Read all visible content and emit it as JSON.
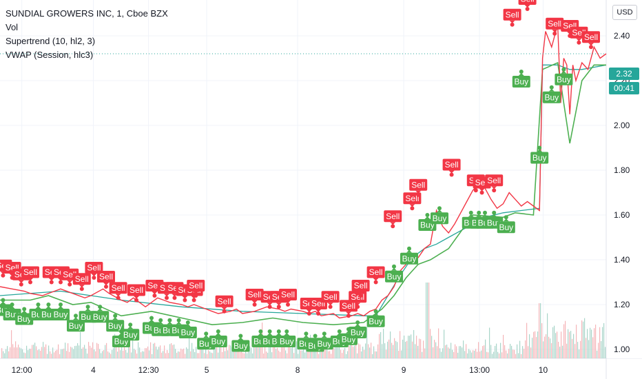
{
  "legend": {
    "title": "SUNDIAL GROWERS INC, 1, Cboe BZX",
    "line2": "Vol",
    "line3": "Supertrend (10, hl2, 3)",
    "line4": "VWAP (Session, hlc3)"
  },
  "currency_button": "USD",
  "price_tag": {
    "value": "2.32",
    "countdown": "00:41",
    "color": "#26a69a"
  },
  "colors": {
    "buy": "#4caf50",
    "sell": "#f23645",
    "price": "#26a69a",
    "vwap": "#26a69a",
    "vol_up": "#a8d5c9",
    "vol_down": "#f5b5b8",
    "grid": "#f0f3fa",
    "text": "#131722"
  },
  "chart_data": {
    "type": "line",
    "title": "SUNDIAL GROWERS INC, 1, Cboe BZX",
    "ylim": [
      0.96,
      2.56
    ],
    "yticks": [
      1.0,
      1.2,
      1.4,
      1.6,
      1.8,
      2.0,
      2.2,
      2.4
    ],
    "ytick_labels": [
      "1.00",
      "1.20",
      "1.40",
      "1.60",
      "1.80",
      "2.00",
      "2.20",
      "2.40"
    ],
    "xlim": [
      0,
      100
    ],
    "xticks": [
      {
        "x": 3.6,
        "label": "12:00"
      },
      {
        "x": 15.4,
        "label": "4"
      },
      {
        "x": 24.5,
        "label": "12:30"
      },
      {
        "x": 34.1,
        "label": "5"
      },
      {
        "x": 49.1,
        "label": "8"
      },
      {
        "x": 66.6,
        "label": "9"
      },
      {
        "x": 79.1,
        "label": "13:00"
      },
      {
        "x": 89.6,
        "label": "10"
      }
    ],
    "price": [
      [
        0,
        1.28
      ],
      [
        2,
        1.27
      ],
      [
        4,
        1.26
      ],
      [
        5,
        1.25
      ],
      [
        7,
        1.24
      ],
      [
        9,
        1.26
      ],
      [
        10,
        1.27
      ],
      [
        12,
        1.25
      ],
      [
        14,
        1.23
      ],
      [
        15,
        1.24
      ],
      [
        17,
        1.27
      ],
      [
        18,
        1.25
      ],
      [
        20,
        1.22
      ],
      [
        21,
        1.21
      ],
      [
        22,
        1.23
      ],
      [
        23,
        1.21
      ],
      [
        24,
        1.19
      ],
      [
        25,
        1.21
      ],
      [
        26,
        1.23
      ],
      [
        27,
        1.22
      ],
      [
        28,
        1.21
      ],
      [
        30,
        1.2
      ],
      [
        31,
        1.19
      ],
      [
        32,
        1.2
      ],
      [
        34,
        1.18
      ],
      [
        35,
        1.17
      ],
      [
        36,
        1.16
      ],
      [
        38,
        1.17
      ],
      [
        39,
        1.18
      ],
      [
        40,
        1.16
      ],
      [
        42,
        1.17
      ],
      [
        44,
        1.19
      ],
      [
        46,
        1.18
      ],
      [
        47,
        1.17
      ],
      [
        48,
        1.18
      ],
      [
        50,
        1.17
      ],
      [
        51,
        1.16
      ],
      [
        52,
        1.17
      ],
      [
        53,
        1.15
      ],
      [
        55,
        1.16
      ],
      [
        56,
        1.14
      ],
      [
        58,
        1.15
      ],
      [
        59,
        1.16
      ],
      [
        60,
        1.15
      ],
      [
        61,
        1.17
      ],
      [
        62,
        1.18
      ],
      [
        63,
        1.22
      ],
      [
        64,
        1.24
      ],
      [
        65,
        1.28
      ],
      [
        66,
        1.35
      ],
      [
        67,
        1.38
      ],
      [
        68,
        1.42
      ],
      [
        69,
        1.41
      ],
      [
        70,
        1.45
      ],
      [
        71,
        1.47
      ],
      [
        72,
        1.62
      ],
      [
        73,
        1.55
      ],
      [
        74,
        1.52
      ],
      [
        75,
        1.56
      ],
      [
        76,
        1.61
      ],
      [
        77,
        1.66
      ],
      [
        78,
        1.71
      ],
      [
        79,
        1.74
      ],
      [
        80,
        1.72
      ],
      [
        81,
        1.67
      ],
      [
        82,
        1.63
      ],
      [
        83,
        1.65
      ],
      [
        84,
        1.7
      ],
      [
        85,
        1.67
      ],
      [
        86,
        1.64
      ],
      [
        87,
        1.66
      ],
      [
        88,
        1.64
      ],
      [
        89,
        1.62
      ],
      [
        89.5,
        2.3
      ],
      [
        90,
        2.42
      ],
      [
        91,
        2.35
      ],
      [
        92,
        2.45
      ],
      [
        92.5,
        2.1
      ],
      [
        93,
        2.3
      ],
      [
        93.5,
        2.27
      ],
      [
        94,
        2.05
      ],
      [
        94.5,
        2.27
      ],
      [
        95,
        2.2
      ],
      [
        96,
        2.28
      ],
      [
        97,
        2.25
      ],
      [
        98,
        2.35
      ],
      [
        99,
        2.3
      ],
      [
        100,
        2.32
      ]
    ],
    "supertrend_up": [
      [
        0,
        1.22
      ],
      [
        5,
        1.22
      ],
      [
        8,
        1.24
      ],
      [
        12,
        1.2
      ],
      [
        15,
        1.21
      ],
      [
        20,
        1.15
      ],
      [
        25,
        1.17
      ],
      [
        30,
        1.14
      ],
      [
        35,
        1.11
      ],
      [
        40,
        1.12
      ],
      [
        45,
        1.14
      ],
      [
        50,
        1.12
      ],
      [
        55,
        1.11
      ],
      [
        60,
        1.12
      ],
      [
        63,
        1.18
      ],
      [
        65,
        1.24
      ],
      [
        67,
        1.32
      ],
      [
        69,
        1.38
      ],
      [
        71,
        1.4
      ],
      [
        74,
        1.45
      ],
      [
        78,
        1.6
      ],
      [
        83,
        1.59
      ],
      [
        85,
        1.61
      ],
      [
        88,
        1.6
      ],
      [
        89.5,
        2.25
      ],
      [
        92,
        2.28
      ],
      [
        94,
        1.92
      ],
      [
        96,
        2.2
      ],
      [
        98,
        2.27
      ],
      [
        100,
        2.27
      ]
    ],
    "vwap": [
      [
        0,
        1.24
      ],
      [
        10,
        1.26
      ],
      [
        20,
        1.22
      ],
      [
        30,
        1.19
      ],
      [
        40,
        1.17
      ],
      [
        50,
        1.16
      ],
      [
        60,
        1.15
      ],
      [
        62,
        1.15
      ],
      [
        64,
        1.24
      ],
      [
        66,
        1.33
      ],
      [
        68,
        1.41
      ],
      [
        70,
        1.45
      ],
      [
        72,
        1.47
      ],
      [
        74,
        1.5
      ],
      [
        76,
        1.53
      ],
      [
        78,
        1.56
      ],
      [
        80,
        1.59
      ],
      [
        83,
        1.61
      ],
      [
        86,
        1.62
      ],
      [
        89,
        1.63
      ],
      [
        89.5,
        2.27
      ],
      [
        92,
        2.27
      ],
      [
        94,
        2.25
      ],
      [
        96,
        2.25
      ],
      [
        100,
        2.27
      ]
    ],
    "buy_signals": [
      [
        0.5,
        1.22
      ],
      [
        2,
        1.2
      ],
      [
        4,
        1.18
      ],
      [
        6.3,
        1.2
      ],
      [
        8,
        1.2
      ],
      [
        10,
        1.2
      ],
      [
        12.5,
        1.15
      ],
      [
        14.5,
        1.19
      ],
      [
        16.5,
        1.19
      ],
      [
        19,
        1.15
      ],
      [
        20,
        1.08
      ],
      [
        21.5,
        1.11
      ],
      [
        25,
        1.14
      ],
      [
        26.5,
        1.13
      ],
      [
        28,
        1.13
      ],
      [
        29.5,
        1.13
      ],
      [
        31,
        1.12
      ],
      [
        34,
        1.07
      ],
      [
        36,
        1.08
      ],
      [
        39.7,
        1.06
      ],
      [
        43,
        1.08
      ],
      [
        44.5,
        1.08
      ],
      [
        46,
        1.08
      ],
      [
        47.3,
        1.08
      ],
      [
        50.5,
        1.07
      ],
      [
        52,
        1.06
      ],
      [
        53.5,
        1.07
      ],
      [
        56,
        1.08
      ],
      [
        57.5,
        1.09
      ],
      [
        59,
        1.12
      ],
      [
        62,
        1.17
      ],
      [
        65,
        1.37
      ],
      [
        67.5,
        1.45
      ],
      [
        70.5,
        1.6
      ],
      [
        72.5,
        1.63
      ],
      [
        77.7,
        1.61
      ],
      [
        79,
        1.61
      ],
      [
        80,
        1.61
      ],
      [
        81.5,
        1.61
      ],
      [
        83.5,
        1.59
      ],
      [
        86,
        2.24
      ],
      [
        89,
        1.9
      ],
      [
        91,
        2.17
      ],
      [
        93,
        2.25
      ]
    ],
    "sell_signals": [
      [
        0.5,
        1.33
      ],
      [
        2,
        1.32
      ],
      [
        3.5,
        1.29
      ],
      [
        5,
        1.3
      ],
      [
        8.5,
        1.3
      ],
      [
        10,
        1.3
      ],
      [
        11.5,
        1.29
      ],
      [
        13.5,
        1.27
      ],
      [
        15.5,
        1.32
      ],
      [
        17.5,
        1.28
      ],
      [
        19.5,
        1.23
      ],
      [
        22.5,
        1.22
      ],
      [
        25.5,
        1.24
      ],
      [
        27.5,
        1.23
      ],
      [
        28.8,
        1.23
      ],
      [
        30.5,
        1.22
      ],
      [
        32,
        1.22
      ],
      [
        32.3,
        1.24
      ],
      [
        37,
        1.17
      ],
      [
        42,
        1.2
      ],
      [
        44.5,
        1.19
      ],
      [
        46,
        1.19
      ],
      [
        47.5,
        1.2
      ],
      [
        51,
        1.16
      ],
      [
        52.5,
        1.16
      ],
      [
        54.5,
        1.19
      ],
      [
        57.5,
        1.15
      ],
      [
        59,
        1.19
      ],
      [
        59.5,
        1.24
      ],
      [
        62,
        1.3
      ],
      [
        64.8,
        1.55
      ],
      [
        68,
        1.63
      ],
      [
        69,
        1.69
      ],
      [
        74.5,
        1.78
      ],
      [
        78.5,
        1.71
      ],
      [
        79.5,
        1.7
      ],
      [
        81.5,
        1.71
      ],
      [
        84.5,
        2.45
      ],
      [
        87,
        2.52
      ],
      [
        91.5,
        2.41
      ],
      [
        94,
        2.4
      ],
      [
        95.5,
        2.37
      ],
      [
        97.5,
        2.35
      ]
    ],
    "buy_label": "Buy",
    "sell_label": "Sell",
    "volume_note": "Vol"
  }
}
